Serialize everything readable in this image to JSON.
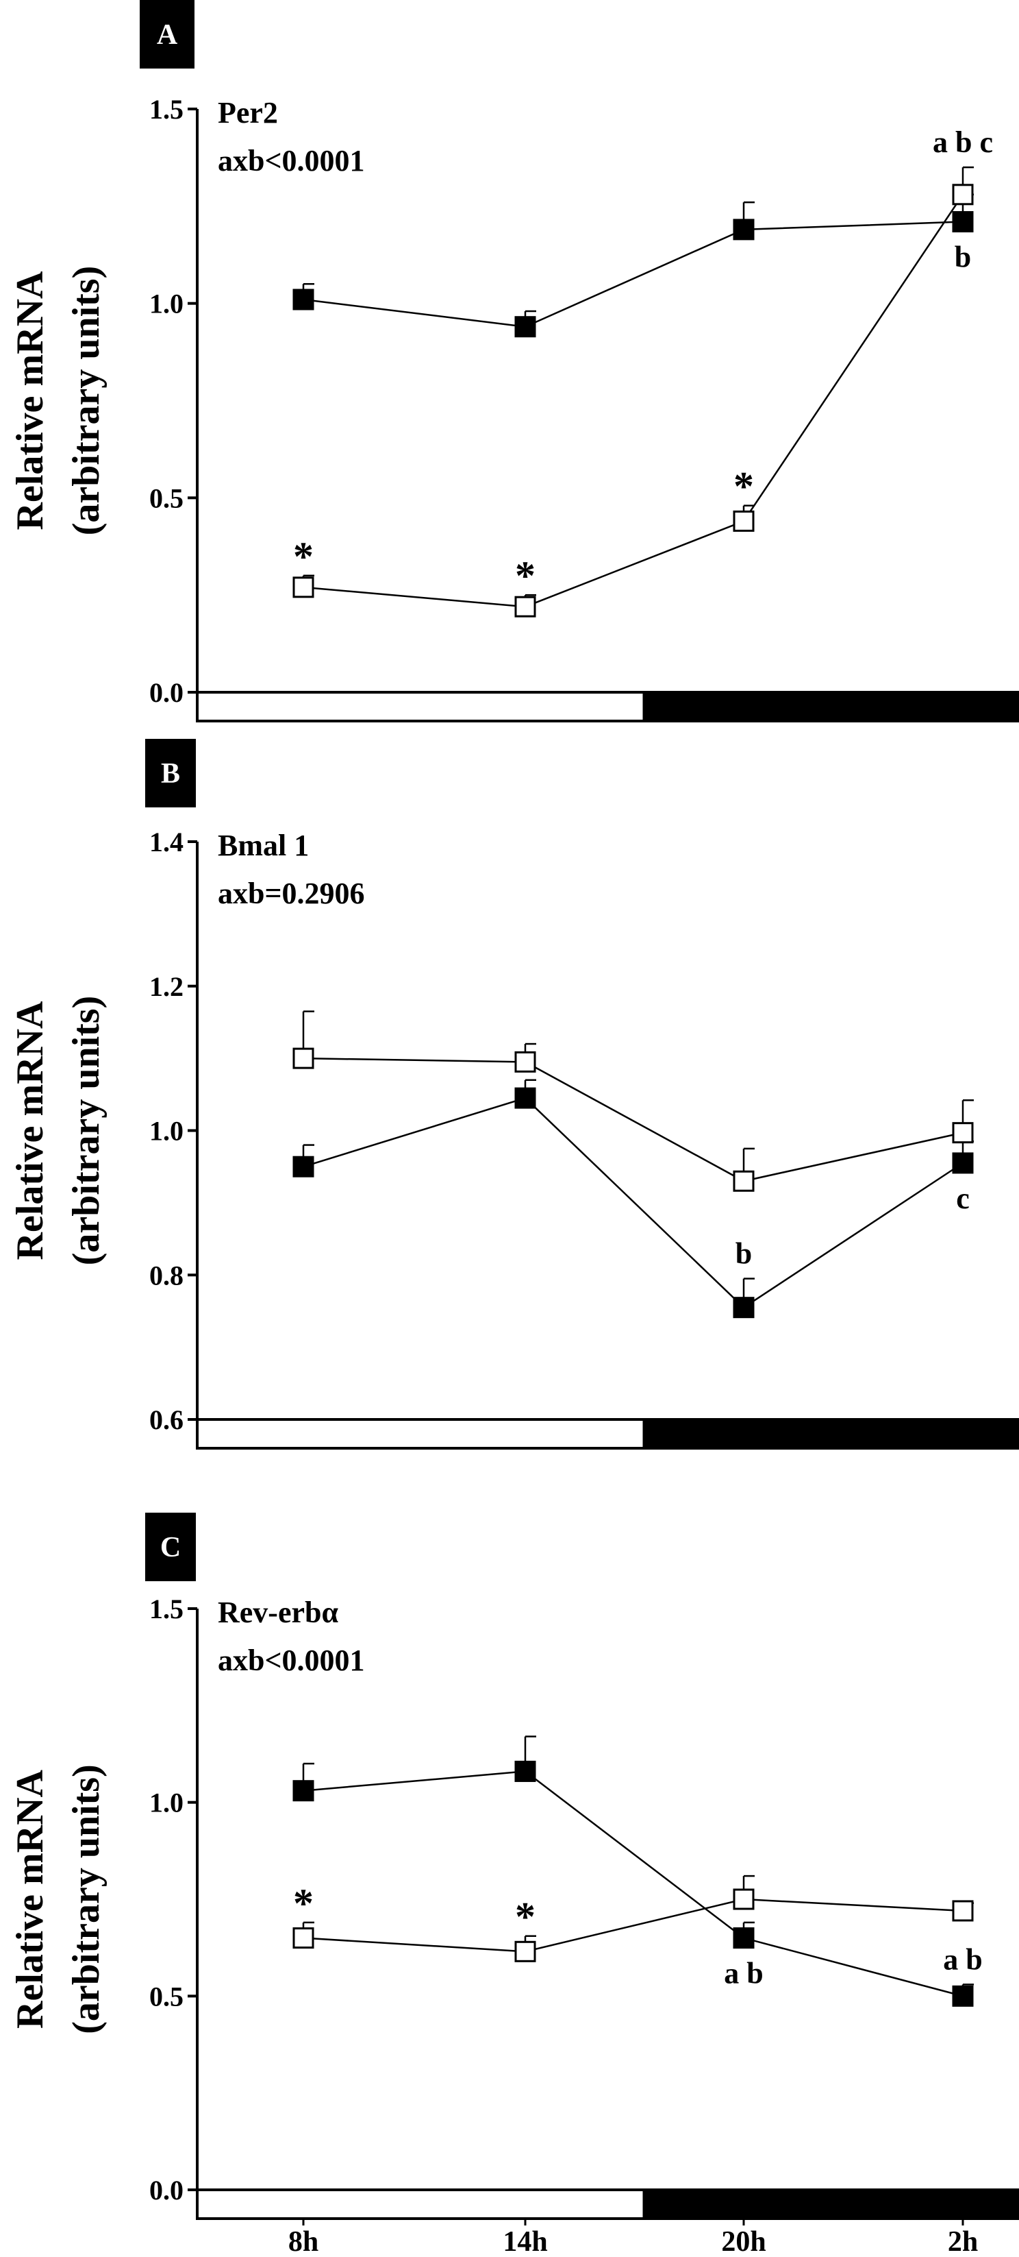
{
  "chart_data": [
    {
      "type": "line",
      "panel_label": "A",
      "annotation_lines": [
        "Per2",
        "axb<0.0001"
      ],
      "ylabel_lines": [
        "Relative mRNA",
        "(arbitrary units)"
      ],
      "ylim": [
        0.0,
        1.5
      ],
      "yticks": [
        0.0,
        0.5,
        1.0,
        1.5
      ],
      "ytick_labels": [
        "0.0",
        "0.5",
        "1.0",
        "1.5"
      ],
      "categories": [
        "8h",
        "14h",
        "20h",
        "2h"
      ],
      "light_dark_bar": [
        "light",
        "light",
        "dark",
        "dark"
      ],
      "series": [
        {
          "marker": "filled-square",
          "values": [
            1.01,
            0.94,
            1.19,
            1.21
          ],
          "errors": [
            0.04,
            0.04,
            0.07,
            0.07
          ]
        },
        {
          "marker": "open-square",
          "values": [
            0.27,
            0.22,
            0.44,
            1.28
          ],
          "errors": [
            0.03,
            0.03,
            0.04,
            0.07
          ]
        }
      ],
      "point_annotations": [
        {
          "series": 1,
          "index": 0,
          "text": "*",
          "position": "above"
        },
        {
          "series": 1,
          "index": 1,
          "text": "*",
          "position": "above"
        },
        {
          "series": 1,
          "index": 2,
          "text": "*",
          "position": "above"
        },
        {
          "series": 1,
          "index": 3,
          "text": "a b c",
          "position": "above"
        },
        {
          "series": 0,
          "index": 3,
          "text": "b",
          "position": "below"
        }
      ]
    },
    {
      "type": "line",
      "panel_label": "B",
      "annotation_lines": [
        "Bmal 1",
        "axb=0.2906"
      ],
      "ylabel_lines": [
        "Relative mRNA",
        "(arbitrary units)"
      ],
      "ylim": [
        0.6,
        1.4
      ],
      "yticks": [
        0.6,
        0.8,
        1.0,
        1.2,
        1.4
      ],
      "ytick_labels": [
        "0.6",
        "0.8",
        "1.0",
        "1.2",
        "1.4"
      ],
      "categories": [
        "8h",
        "14h",
        "20h",
        "2h"
      ],
      "light_dark_bar": [
        "light",
        "light",
        "dark",
        "dark"
      ],
      "series": [
        {
          "marker": "filled-square",
          "values": [
            0.95,
            1.045,
            0.755,
            0.955
          ],
          "errors": [
            0.03,
            0.025,
            0.04,
            0.03
          ]
        },
        {
          "marker": "open-square",
          "values": [
            1.1,
            1.095,
            0.93,
            0.997
          ],
          "errors": [
            0.065,
            0.025,
            0.045,
            0.045
          ]
        }
      ],
      "point_annotations": [
        {
          "series": 0,
          "index": 2,
          "text": "b",
          "position": "above"
        },
        {
          "series": 0,
          "index": 3,
          "text": "c",
          "position": "below"
        }
      ]
    },
    {
      "type": "line",
      "panel_label": "C",
      "annotation_lines": [
        "Rev-erbα",
        "axb<0.0001"
      ],
      "ylabel_lines": [
        "Relative mRNA",
        "(arbitrary units)"
      ],
      "ylim": [
        0.0,
        1.5
      ],
      "yticks": [
        0.0,
        0.5,
        1.0,
        1.5
      ],
      "ytick_labels": [
        "0.0",
        "0.5",
        "1.0",
        "1.5"
      ],
      "categories": [
        "8h",
        "14h",
        "20h",
        "2h"
      ],
      "light_dark_bar": [
        "light",
        "light",
        "dark",
        "dark"
      ],
      "series": [
        {
          "marker": "filled-square",
          "values": [
            1.03,
            1.08,
            0.65,
            0.5
          ],
          "errors": [
            0.07,
            0.09,
            0.04,
            0.03
          ]
        },
        {
          "marker": "open-square",
          "values": [
            0.65,
            0.615,
            0.75,
            0.72
          ],
          "errors": [
            0.04,
            0.04,
            0.06,
            0.02
          ]
        }
      ],
      "point_annotations": [
        {
          "series": 1,
          "index": 0,
          "text": "*",
          "position": "above"
        },
        {
          "series": 1,
          "index": 1,
          "text": "*",
          "position": "above"
        },
        {
          "series": 0,
          "index": 2,
          "text": "a b",
          "position": "below"
        },
        {
          "series": 0,
          "index": 3,
          "text": "a b",
          "position": "above"
        }
      ]
    }
  ]
}
